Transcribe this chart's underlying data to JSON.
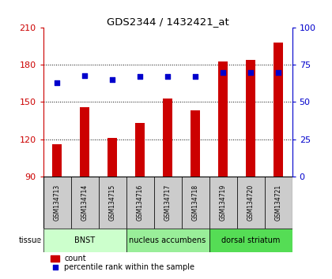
{
  "title": "GDS2344 / 1432421_at",
  "samples": [
    "GSM134713",
    "GSM134714",
    "GSM134715",
    "GSM134716",
    "GSM134717",
    "GSM134718",
    "GSM134719",
    "GSM134720",
    "GSM134721"
  ],
  "counts": [
    116,
    146,
    121,
    133,
    153,
    143,
    183,
    184,
    198
  ],
  "percentiles": [
    63,
    68,
    65,
    67,
    67,
    67,
    70,
    70,
    70
  ],
  "ylim_left": [
    90,
    210
  ],
  "ylim_right": [
    0,
    100
  ],
  "yticks_left": [
    90,
    120,
    150,
    180,
    210
  ],
  "yticks_right": [
    0,
    25,
    50,
    75,
    100
  ],
  "bar_color": "#cc0000",
  "dot_color": "#0000cc",
  "tissue_groups": [
    {
      "label": "BNST",
      "start": 0,
      "end": 3,
      "color": "#ccffcc"
    },
    {
      "label": "nucleus accumbens",
      "start": 3,
      "end": 6,
      "color": "#99ee99"
    },
    {
      "label": "dorsal striatum",
      "start": 6,
      "end": 9,
      "color": "#55dd55"
    }
  ],
  "tissue_label": "tissue",
  "legend_count": "count",
  "legend_pct": "percentile rank within the sample",
  "left_axis_color": "#cc0000",
  "right_axis_color": "#0000cc",
  "sample_bg": "#cccccc",
  "bar_width": 0.35
}
